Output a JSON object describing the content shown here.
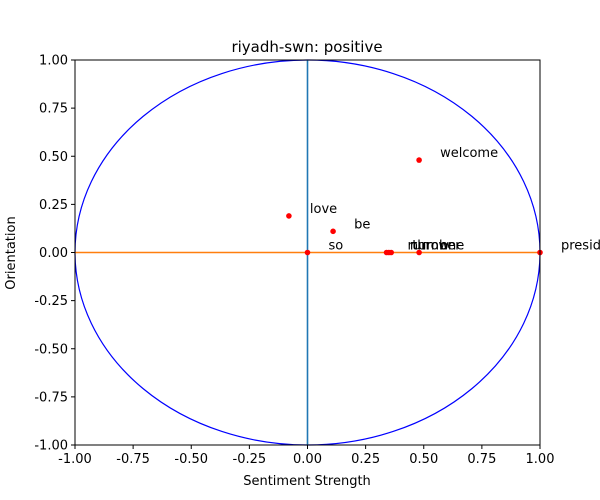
{
  "chart_data": {
    "type": "scatter",
    "title": "riyadh-swn: positive",
    "xlabel": "Sentiment Strength",
    "ylabel": "Orientation",
    "xlim": [
      -1.0,
      1.0
    ],
    "ylim": [
      -1.0,
      1.0
    ],
    "xticks": [
      "-1.00",
      "-0.75",
      "-0.50",
      "-0.25",
      "0.00",
      "0.25",
      "0.50",
      "0.75",
      "1.00"
    ],
    "yticks": [
      "1.00",
      "0.75",
      "0.50",
      "0.25",
      "0.00",
      "-0.25",
      "-0.50",
      "-0.75",
      "-1.00"
    ],
    "grid": false,
    "legend": "none",
    "unit_circle": true,
    "points": [
      {
        "label": "welcome",
        "x": 0.48,
        "y": 0.48
      },
      {
        "label": "love",
        "x": -0.08,
        "y": 0.19
      },
      {
        "label": "be",
        "x": 0.11,
        "y": 0.11
      },
      {
        "label": "so",
        "x": 0.0,
        "y": 0.0
      },
      {
        "label": "run",
        "x": 0.34,
        "y": 0.0
      },
      {
        "label": "number",
        "x": 0.35,
        "y": 0.0
      },
      {
        "label": "throw",
        "x": 0.36,
        "y": 0.0
      },
      {
        "label": "one",
        "x": 0.48,
        "y": 0.0
      },
      {
        "label": "presidential",
        "x": 1.0,
        "y": 0.0
      }
    ],
    "colors": {
      "circle": "#0000ff",
      "vertical_axis_line": "#1f77b4",
      "horizontal_axis_line": "#ff7f0e",
      "points": "#ff0000"
    }
  }
}
